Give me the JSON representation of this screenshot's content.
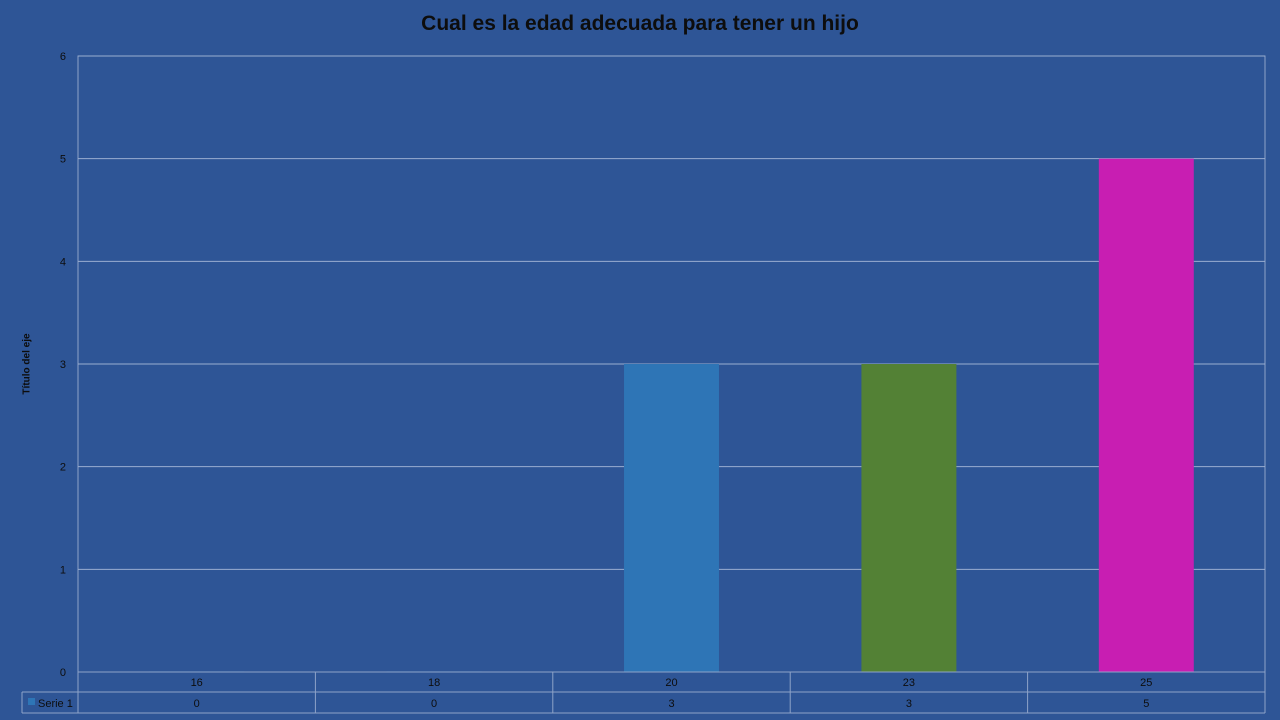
{
  "chart_data": {
    "type": "bar",
    "title": "Cual es la edad adecuada para tener un hijo",
    "ylabel": "Título del eje",
    "xlabel": "",
    "categories": [
      "16",
      "18",
      "20",
      "23",
      "25"
    ],
    "series": [
      {
        "name": "Serie 1",
        "values": [
          0,
          0,
          3,
          3,
          5
        ]
      }
    ],
    "bar_colors": [
      "#2e75b6",
      "#2e75b6",
      "#2e75b6",
      "#538135",
      "#c81eb2"
    ],
    "legend_color": "#2e75b6",
    "ylim": [
      0,
      6
    ],
    "yticks": [
      0,
      1,
      2,
      3,
      4,
      5,
      6
    ],
    "grid": true,
    "legend": "data-table-left"
  }
}
